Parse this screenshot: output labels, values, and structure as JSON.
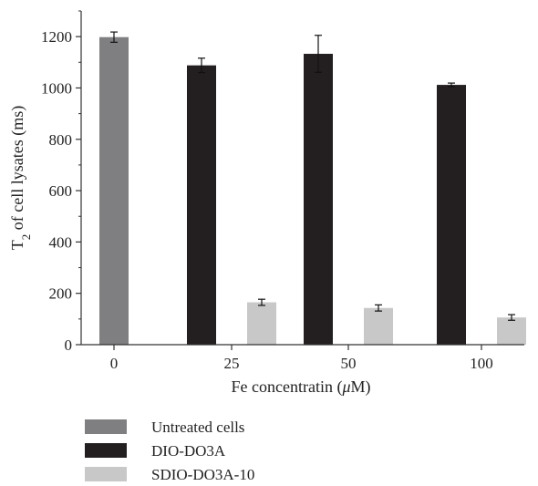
{
  "chart_data": {
    "type": "bar",
    "title": "",
    "xlabel_prefix": "Fe concentratin (",
    "xlabel_unit": "μ",
    "xlabel_suffix": "M)",
    "ylabel_main": "T",
    "ylabel_sub": "2",
    "ylabel_rest": " of cell lysates (ms)",
    "ylim": [
      0,
      1300
    ],
    "yticks": [
      0,
      200,
      400,
      600,
      800,
      1000,
      1200
    ],
    "categories": [
      "0",
      "25",
      "50",
      "100"
    ],
    "legend_position": "bottom",
    "series": [
      {
        "name": "Untreated cells",
        "color": "#7f7f81",
        "values": [
          1198,
          null,
          null,
          null
        ],
        "errors": [
          20,
          null,
          null,
          null
        ]
      },
      {
        "name": "DIO-DO3A",
        "color": "#231f20",
        "values": [
          null,
          1088,
          1133,
          1012
        ],
        "errors": [
          null,
          28,
          72,
          7
        ]
      },
      {
        "name": "SDIO-DO3A-10",
        "color": "#c8c8c8",
        "values": [
          null,
          165,
          143,
          106
        ],
        "errors": [
          null,
          12,
          12,
          11
        ]
      }
    ]
  }
}
